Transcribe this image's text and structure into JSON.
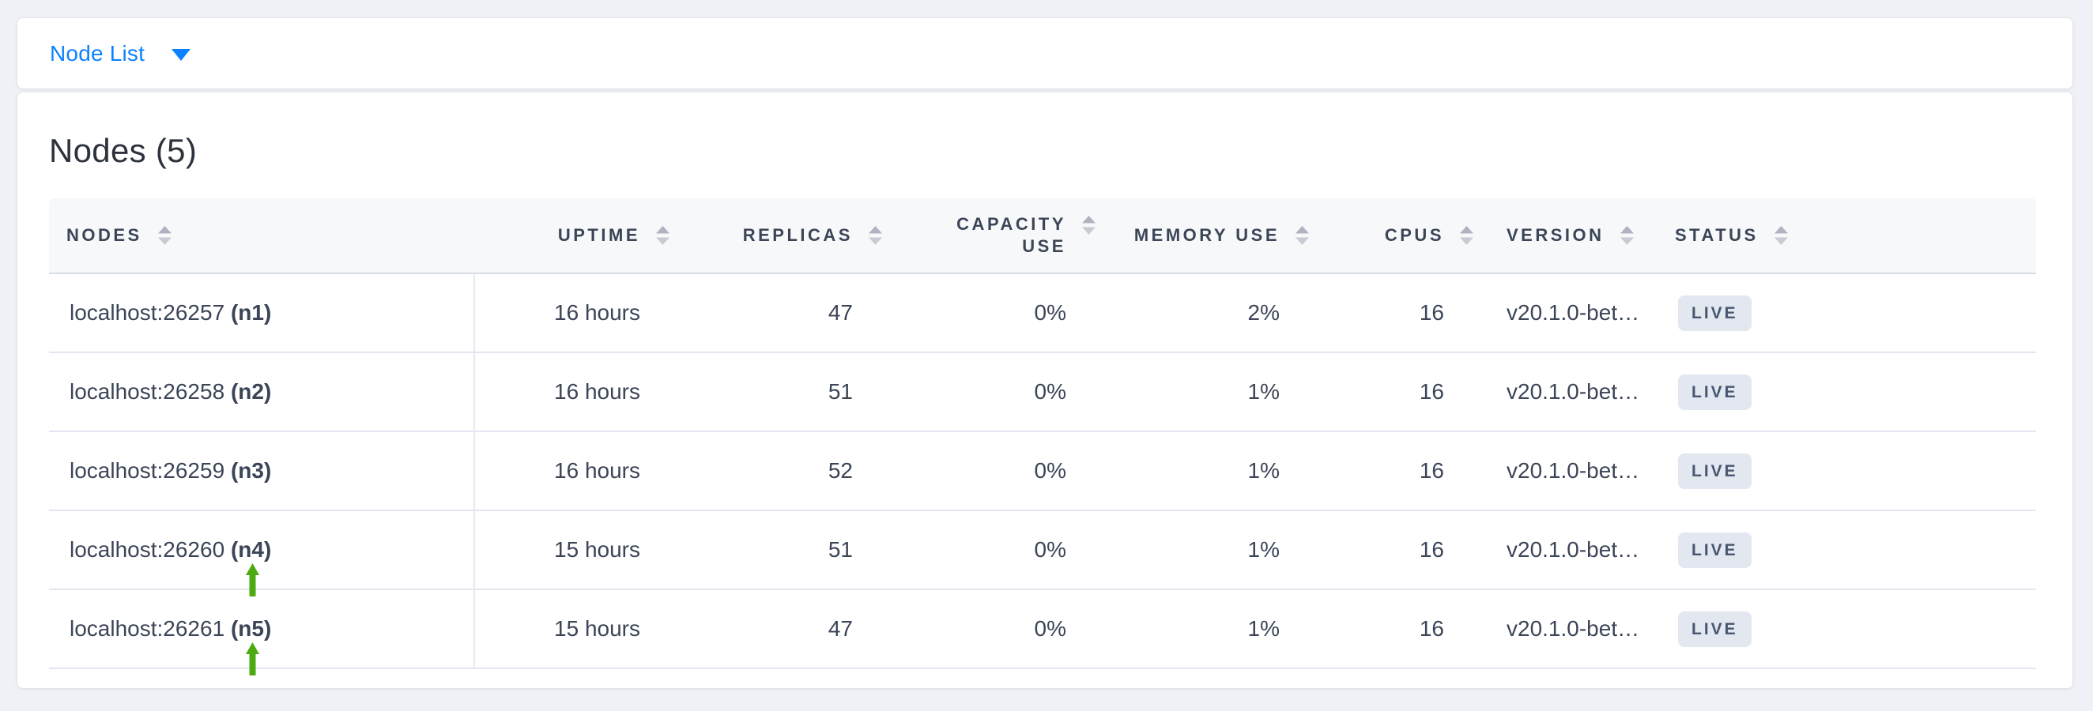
{
  "toolbar": {
    "dropdown_label": "Node List"
  },
  "panel": {
    "title": "Nodes (5)"
  },
  "table": {
    "columns": [
      {
        "label": "NODES"
      },
      {
        "label": "UPTIME"
      },
      {
        "label": "REPLICAS"
      },
      {
        "label": "CAPACITY USE"
      },
      {
        "label": "MEMORY USE"
      },
      {
        "label": "CPUS"
      },
      {
        "label": "VERSION"
      },
      {
        "label": "STATUS"
      }
    ],
    "rows": [
      {
        "address": "localhost:26257",
        "name": "(n1)",
        "uptime": "16 hours",
        "replicas": "47",
        "capacity_use": "0%",
        "memory_use": "2%",
        "cpus": "16",
        "version": "v20.1.0-bet…",
        "status": "LIVE",
        "arrow": false
      },
      {
        "address": "localhost:26258",
        "name": "(n2)",
        "uptime": "16 hours",
        "replicas": "51",
        "capacity_use": "0%",
        "memory_use": "1%",
        "cpus": "16",
        "version": "v20.1.0-bet…",
        "status": "LIVE",
        "arrow": false
      },
      {
        "address": "localhost:26259",
        "name": "(n3)",
        "uptime": "16 hours",
        "replicas": "52",
        "capacity_use": "0%",
        "memory_use": "1%",
        "cpus": "16",
        "version": "v20.1.0-bet…",
        "status": "LIVE",
        "arrow": false
      },
      {
        "address": "localhost:26260",
        "name": "(n4)",
        "uptime": "15 hours",
        "replicas": "51",
        "capacity_use": "0%",
        "memory_use": "1%",
        "cpus": "16",
        "version": "v20.1.0-bet…",
        "status": "LIVE",
        "arrow": true
      },
      {
        "address": "localhost:26261",
        "name": "(n5)",
        "uptime": "15 hours",
        "replicas": "47",
        "capacity_use": "0%",
        "memory_use": "1%",
        "cpus": "16",
        "version": "v20.1.0-bet…",
        "status": "LIVE",
        "arrow": true
      }
    ]
  },
  "colors": {
    "accent_blue": "#0d82ff",
    "arrow_green": "#4cab10",
    "badge_bg": "#e2e7f0",
    "header_text": "#3b4557"
  }
}
